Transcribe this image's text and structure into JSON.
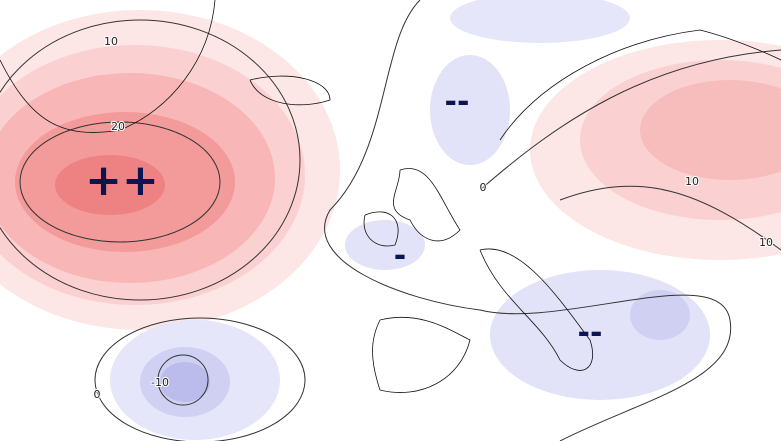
{
  "contour_labels": [
    "10",
    "20",
    "0",
    "10",
    "10",
    "-10",
    "0"
  ],
  "anomaly_signs": [
    "++",
    "--",
    "-",
    "--"
  ]
}
